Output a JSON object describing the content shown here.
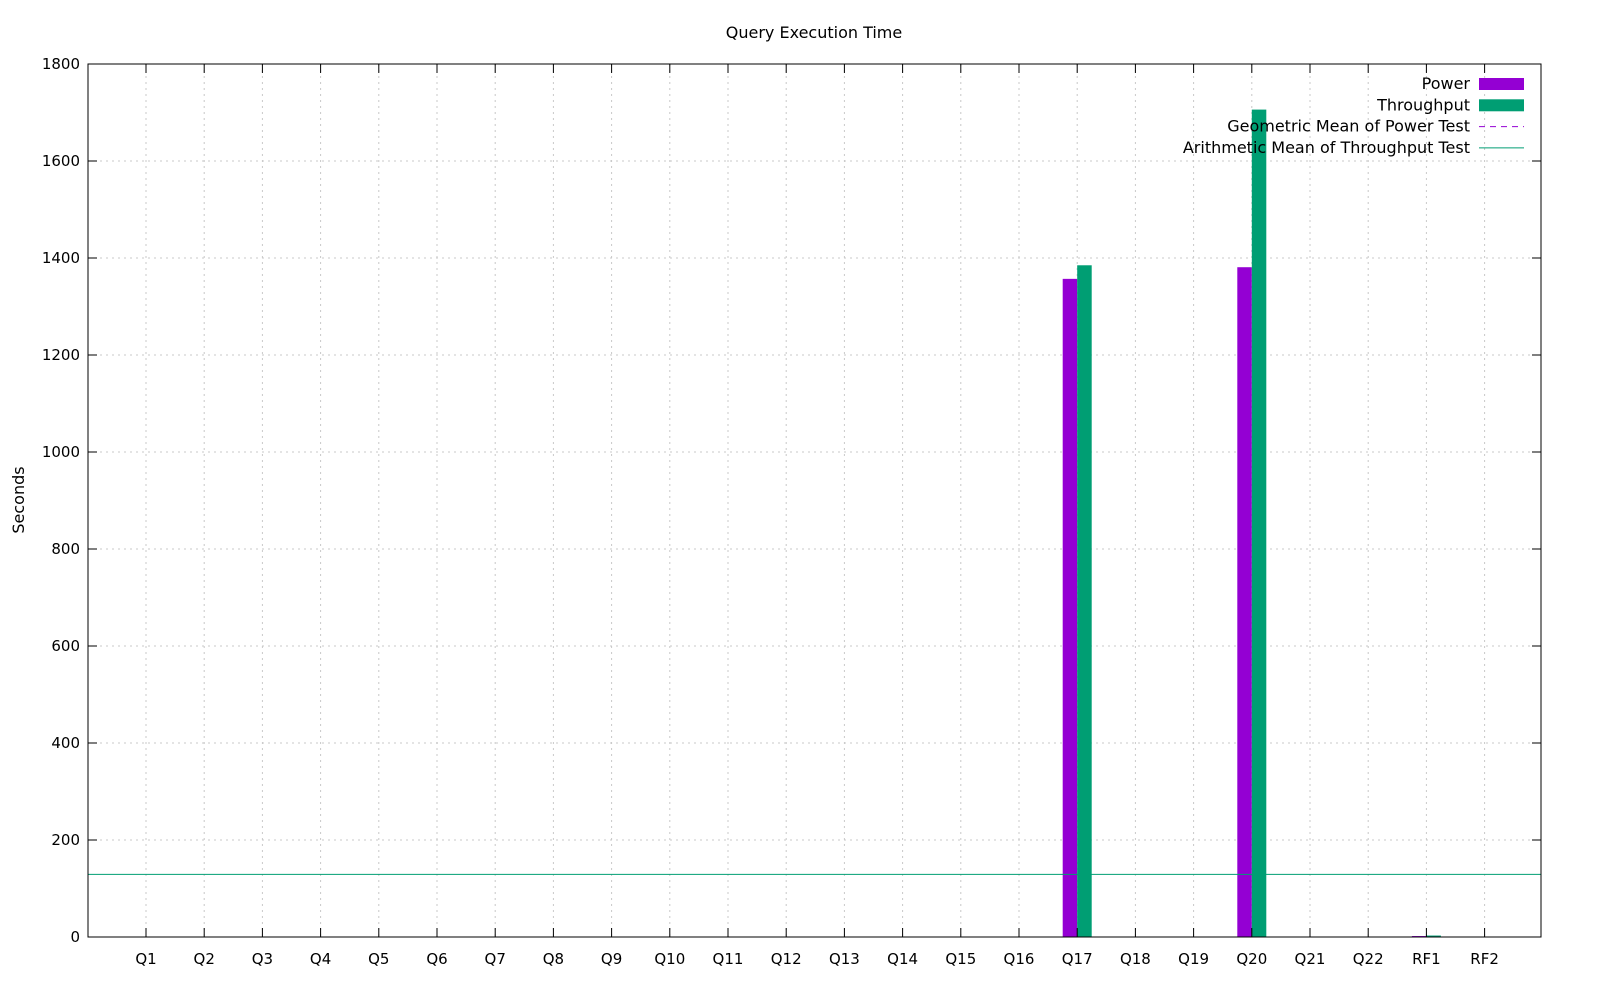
{
  "chart_data": {
    "type": "bar",
    "title": "Query Execution Time",
    "xlabel": "",
    "ylabel": "Seconds",
    "ylim": [
      0,
      1800
    ],
    "yticks": [
      0,
      200,
      400,
      600,
      800,
      1000,
      1200,
      1400,
      1600,
      1800
    ],
    "grid": true,
    "legend_position": "top-right",
    "categories": [
      "Q1",
      "Q2",
      "Q3",
      "Q4",
      "Q5",
      "Q6",
      "Q7",
      "Q8",
      "Q9",
      "Q10",
      "Q11",
      "Q12",
      "Q13",
      "Q14",
      "Q15",
      "Q16",
      "Q17",
      "Q18",
      "Q19",
      "Q20",
      "Q21",
      "Q22",
      "RF1",
      "RF2"
    ],
    "series": [
      {
        "name": "Power",
        "color": "#9400d3",
        "values": [
          0,
          0,
          0,
          0,
          0,
          0,
          0,
          0,
          0,
          0,
          0,
          0,
          0,
          0,
          0,
          0,
          1357,
          0,
          0,
          1381,
          0,
          0,
          2,
          0
        ]
      },
      {
        "name": "Throughput",
        "color": "#009e73",
        "values": [
          0,
          0,
          0,
          0,
          0,
          0,
          0,
          0,
          0,
          0,
          0,
          0,
          0,
          0,
          0,
          0,
          1385,
          0,
          0,
          1706,
          0,
          0,
          3,
          0
        ]
      }
    ],
    "reference_lines": [
      {
        "name": "Geometric Mean of Power Test",
        "color": "#9400d3",
        "style": "dashed",
        "value": 0
      },
      {
        "name": "Arithmetic Mean of Throughput Test",
        "color": "#009e73",
        "style": "solid",
        "value": 129
      }
    ]
  }
}
